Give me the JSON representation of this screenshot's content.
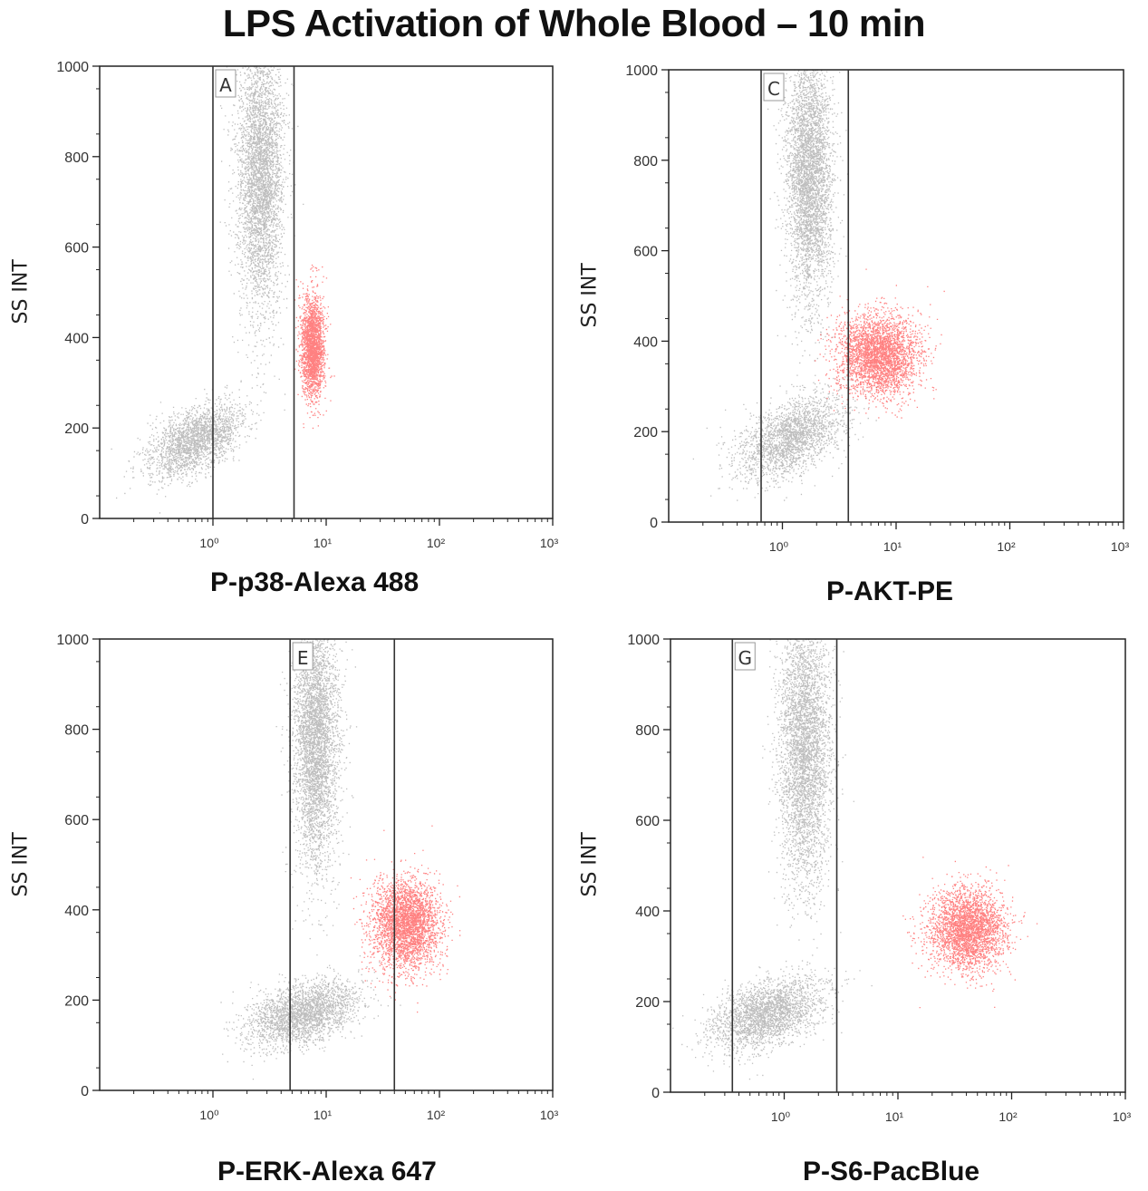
{
  "title": "LPS Activation of Whole Blood – 10 min",
  "colors": {
    "unstimulated": "#6e6e6e",
    "activated": "#ff1a1a",
    "axis": "#222222"
  },
  "chart_data": [
    {
      "type": "scatter",
      "xlabel": "P-p38-Alexa 488",
      "ylabel": "SS INT",
      "xscale": "log",
      "xlim": [
        0.1,
        1000
      ],
      "ylim": [
        0,
        1000
      ],
      "yticks": [
        "0",
        "200",
        "400",
        "600",
        "800",
        "1000"
      ],
      "xticks": [
        "10⁰",
        "10¹",
        "10²",
        "10³"
      ],
      "gate": {
        "label": "A",
        "range": [
          1.0,
          5.2
        ]
      },
      "populations": [
        {
          "color": "gray",
          "x_center": 0.7,
          "y_center": 175,
          "x_spread_decades": 0.18,
          "y_spread": 40,
          "count": 2200
        },
        {
          "color": "gray",
          "x_center": 2.6,
          "y_center": 760,
          "x_spread_decades": 0.1,
          "y_spread": 150,
          "count": 4000
        },
        {
          "color": "red",
          "x_center": 7.5,
          "y_center": 380,
          "x_spread_decades": 0.05,
          "y_spread": 55,
          "count": 2200
        }
      ]
    },
    {
      "type": "scatter",
      "xlabel": "P-AKT-PE",
      "ylabel": "SS INT",
      "xscale": "log",
      "xlim": [
        0.1,
        1000
      ],
      "ylim": [
        0,
        1000
      ],
      "yticks": [
        "0",
        "200",
        "400",
        "600",
        "800",
        "1000"
      ],
      "xticks": [
        "10⁰",
        "10¹",
        "10²",
        "10³"
      ],
      "gate": {
        "label": "C",
        "range": [
          0.65,
          3.8
        ]
      },
      "populations": [
        {
          "color": "gray",
          "x_center": 1.2,
          "y_center": 190,
          "x_spread_decades": 0.2,
          "y_spread": 45,
          "count": 2200
        },
        {
          "color": "gray",
          "x_center": 1.7,
          "y_center": 770,
          "x_spread_decades": 0.1,
          "y_spread": 140,
          "count": 4000
        },
        {
          "color": "red",
          "x_center": 7.0,
          "y_center": 370,
          "x_spread_decades": 0.18,
          "y_spread": 45,
          "count": 3200
        }
      ]
    },
    {
      "type": "scatter",
      "xlabel": "P-ERK-Alexa 647",
      "ylabel": "SS INT",
      "xscale": "log",
      "xlim": [
        0.1,
        1000
      ],
      "ylim": [
        0,
        1000
      ],
      "yticks": [
        "0",
        "200",
        "400",
        "600",
        "800",
        "1000"
      ],
      "xticks": [
        "10⁰",
        "10¹",
        "10²",
        "10³"
      ],
      "gate": {
        "label": "E",
        "range": [
          4.8,
          40
        ]
      },
      "populations": [
        {
          "color": "gray",
          "x_center": 6.0,
          "y_center": 170,
          "x_spread_decades": 0.22,
          "y_spread": 35,
          "count": 2500
        },
        {
          "color": "gray",
          "x_center": 8.0,
          "y_center": 780,
          "x_spread_decades": 0.1,
          "y_spread": 140,
          "count": 4000
        },
        {
          "color": "red",
          "x_center": 50,
          "y_center": 370,
          "x_spread_decades": 0.15,
          "y_spread": 50,
          "count": 3200
        }
      ]
    },
    {
      "type": "scatter",
      "xlabel": "P-S6-PacBlue",
      "ylabel": "SS INT",
      "xscale": "log",
      "xlim": [
        0.1,
        1000
      ],
      "ylim": [
        0,
        1000
      ],
      "yticks": [
        "0",
        "200",
        "400",
        "600",
        "800",
        "1000"
      ],
      "xticks": [
        "10⁰",
        "10¹",
        "10²",
        "10³"
      ],
      "gate": {
        "label": "G",
        "range": [
          0.35,
          2.9
        ]
      },
      "populations": [
        {
          "color": "gray",
          "x_center": 0.7,
          "y_center": 175,
          "x_spread_decades": 0.22,
          "y_spread": 40,
          "count": 2500
        },
        {
          "color": "gray",
          "x_center": 1.5,
          "y_center": 760,
          "x_spread_decades": 0.11,
          "y_spread": 150,
          "count": 4000
        },
        {
          "color": "red",
          "x_center": 40,
          "y_center": 360,
          "x_spread_decades": 0.17,
          "y_spread": 45,
          "count": 3000
        }
      ]
    }
  ]
}
